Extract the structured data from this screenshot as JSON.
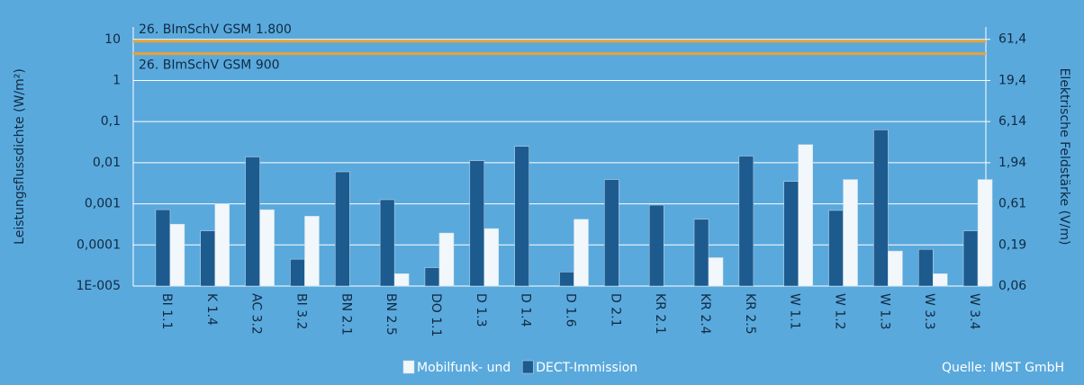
{
  "chart_data": {
    "type": "bar",
    "log_scale": true,
    "grid": true,
    "legend": "bottom",
    "y_label": "Leistungsflussdichte (W/m²)",
    "y2_label": "Elektrische Feldstärke (V/m)",
    "source": "Quelle: IMST GmbH",
    "categories": [
      "BI 1.1",
      "K 1.4",
      "AC 3.2",
      "BI 3.2",
      "BN 2.1",
      "BN 2.5",
      "DO 1.1",
      "D 1.3",
      "D 1.4",
      "D 1.6",
      "D 2.1",
      "KR 2.1",
      "KR 2.4",
      "KR 2.5",
      "W 1.1",
      "W 1.2",
      "W 1.3",
      "W 3.3",
      "W 3.4"
    ],
    "series": [
      {
        "name": "DECT-Immission",
        "color": "#1d5a8e",
        "values": [
          0.00072,
          0.00022,
          0.0138,
          4.5e-05,
          0.006,
          0.00126,
          2.8e-05,
          0.0112,
          0.025,
          2.2e-05,
          0.0039,
          0.00093,
          0.00042,
          0.0145,
          0.0035,
          0.00069,
          0.063,
          7.8e-05,
          0.00022
        ]
      },
      {
        "name": "Mobilfunk- und",
        "color": "#f2f7fb",
        "values": [
          0.00032,
          0.001,
          0.00072,
          0.0005,
          null,
          2e-05,
          0.000195,
          0.00025,
          null,
          0.00042,
          null,
          null,
          4.9e-05,
          null,
          0.0276,
          0.0039,
          7.1e-05,
          2e-05,
          0.0039
        ]
      }
    ],
    "reference_lines": [
      {
        "label": "26. BImSchV GSM 1.800",
        "value": 9,
        "color": "#e8a23a"
      },
      {
        "label": "26. BImSchV GSM 900",
        "value": 4.5,
        "color": "#e8a23a"
      }
    ],
    "ylim": [
      1e-05,
      20
    ],
    "yticks": [
      10,
      1,
      {
        "value": 0.1,
        "label": "0,1"
      },
      {
        "value": 0.01,
        "label": "0,01"
      },
      {
        "value": 0.001,
        "label": "0,001"
      },
      {
        "value": 0.0001,
        "label": "0,0001"
      },
      {
        "value": 1e-05,
        "label": "1E-005"
      }
    ],
    "y2lim": [
      0.0614,
      86.8
    ],
    "y2ticks": [
      {
        "value": 61.4,
        "label": "61,4"
      },
      {
        "value": 19.4,
        "label": "19,4"
      },
      {
        "value": 6.14,
        "label": "6,14"
      },
      {
        "value": 1.94,
        "label": "1,94"
      },
      {
        "value": 0.614,
        "label": "0,61"
      },
      {
        "value": 0.194,
        "label": "0,19"
      },
      {
        "value": 0.0614,
        "label": "0,06"
      }
    ]
  }
}
